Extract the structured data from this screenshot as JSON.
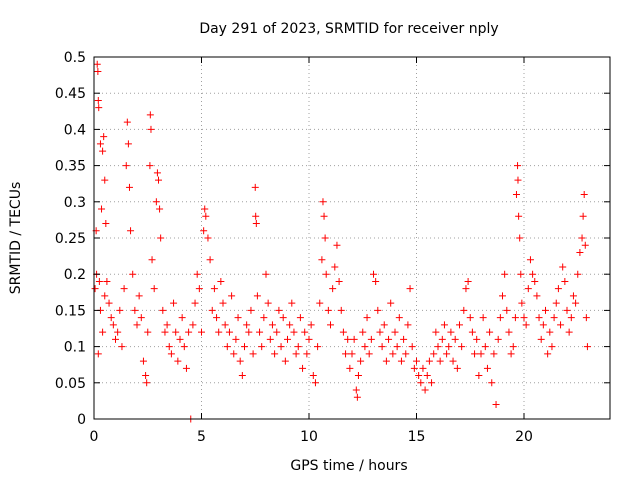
{
  "chart_data": {
    "type": "scatter",
    "title": "Day 291 of 2023, SRMTID for receiver nply",
    "xlabel": "GPS time / hours",
    "ylabel": "SRMTID / TECUs",
    "xlim": [
      0,
      24
    ],
    "ylim": [
      0,
      0.5
    ],
    "x_ticks": [
      0,
      5,
      10,
      15,
      20
    ],
    "y_ticks": [
      0,
      0.05,
      0.1,
      0.15,
      0.2,
      0.25,
      0.3,
      0.35,
      0.4,
      0.45,
      0.5
    ],
    "x_tick_labels": [
      "0",
      "5",
      "10",
      "15",
      "20"
    ],
    "y_tick_labels": [
      "0",
      "0.05",
      "0.1",
      "0.15",
      "0.2",
      "0.25",
      "0.3",
      "0.35",
      "0.4",
      "0.45",
      "0.5"
    ],
    "grid": true,
    "marker": "+",
    "color": "#ff0000",
    "series": [
      {
        "name": "nply",
        "points": [
          [
            0.05,
            0.18
          ],
          [
            0.1,
            0.26
          ],
          [
            0.12,
            0.2
          ],
          [
            0.15,
            0.49
          ],
          [
            0.18,
            0.48
          ],
          [
            0.2,
            0.44
          ],
          [
            0.22,
            0.43
          ],
          [
            0.25,
            0.19
          ],
          [
            0.3,
            0.38
          ],
          [
            0.35,
            0.29
          ],
          [
            0.4,
            0.37
          ],
          [
            0.45,
            0.39
          ],
          [
            0.5,
            0.33
          ],
          [
            0.55,
            0.27
          ],
          [
            0.3,
            0.15
          ],
          [
            0.4,
            0.12
          ],
          [
            0.5,
            0.17
          ],
          [
            0.6,
            0.19
          ],
          [
            0.7,
            0.16
          ],
          [
            0.2,
            0.09
          ],
          [
            0.8,
            0.14
          ],
          [
            0.9,
            0.13
          ],
          [
            1.0,
            0.11
          ],
          [
            1.1,
            0.12
          ],
          [
            1.2,
            0.15
          ],
          [
            1.3,
            0.1
          ],
          [
            1.4,
            0.18
          ],
          [
            1.5,
            0.35
          ],
          [
            1.55,
            0.41
          ],
          [
            1.6,
            0.38
          ],
          [
            1.65,
            0.32
          ],
          [
            1.7,
            0.26
          ],
          [
            1.8,
            0.2
          ],
          [
            1.9,
            0.15
          ],
          [
            2.0,
            0.13
          ],
          [
            2.1,
            0.17
          ],
          [
            2.2,
            0.14
          ],
          [
            2.3,
            0.08
          ],
          [
            2.4,
            0.06
          ],
          [
            2.45,
            0.05
          ],
          [
            2.5,
            0.12
          ],
          [
            2.6,
            0.35
          ],
          [
            2.62,
            0.42
          ],
          [
            2.65,
            0.4
          ],
          [
            2.7,
            0.22
          ],
          [
            2.8,
            0.18
          ],
          [
            2.9,
            0.3
          ],
          [
            2.95,
            0.34
          ],
          [
            3.0,
            0.33
          ],
          [
            3.05,
            0.29
          ],
          [
            3.1,
            0.25
          ],
          [
            3.2,
            0.15
          ],
          [
            3.3,
            0.12
          ],
          [
            3.4,
            0.13
          ],
          [
            3.5,
            0.1
          ],
          [
            3.6,
            0.09
          ],
          [
            3.7,
            0.16
          ],
          [
            3.8,
            0.12
          ],
          [
            3.9,
            0.08
          ],
          [
            4.0,
            0.11
          ],
          [
            4.1,
            0.14
          ],
          [
            4.2,
            0.1
          ],
          [
            4.3,
            0.07
          ],
          [
            4.4,
            0.12
          ],
          [
            4.5,
            0.0
          ],
          [
            4.6,
            0.13
          ],
          [
            4.7,
            0.16
          ],
          [
            4.8,
            0.2
          ],
          [
            4.9,
            0.18
          ],
          [
            5.0,
            0.12
          ],
          [
            5.1,
            0.26
          ],
          [
            5.15,
            0.29
          ],
          [
            5.2,
            0.28
          ],
          [
            5.3,
            0.25
          ],
          [
            5.4,
            0.22
          ],
          [
            5.5,
            0.15
          ],
          [
            5.6,
            0.18
          ],
          [
            5.7,
            0.14
          ],
          [
            5.8,
            0.12
          ],
          [
            5.9,
            0.19
          ],
          [
            6.0,
            0.16
          ],
          [
            6.1,
            0.13
          ],
          [
            6.2,
            0.1
          ],
          [
            6.3,
            0.12
          ],
          [
            6.4,
            0.17
          ],
          [
            6.5,
            0.09
          ],
          [
            6.6,
            0.11
          ],
          [
            6.7,
            0.14
          ],
          [
            6.8,
            0.08
          ],
          [
            6.9,
            0.06
          ],
          [
            7.0,
            0.1
          ],
          [
            7.1,
            0.13
          ],
          [
            7.2,
            0.12
          ],
          [
            7.3,
            0.15
          ],
          [
            7.4,
            0.09
          ],
          [
            7.5,
            0.32
          ],
          [
            7.52,
            0.28
          ],
          [
            7.55,
            0.27
          ],
          [
            7.6,
            0.17
          ],
          [
            7.7,
            0.12
          ],
          [
            7.8,
            0.1
          ],
          [
            7.9,
            0.14
          ],
          [
            8.0,
            0.2
          ],
          [
            8.1,
            0.16
          ],
          [
            8.2,
            0.11
          ],
          [
            8.3,
            0.13
          ],
          [
            8.4,
            0.09
          ],
          [
            8.5,
            0.12
          ],
          [
            8.6,
            0.15
          ],
          [
            8.7,
            0.1
          ],
          [
            8.8,
            0.14
          ],
          [
            8.9,
            0.08
          ],
          [
            9.0,
            0.11
          ],
          [
            9.1,
            0.13
          ],
          [
            9.2,
            0.16
          ],
          [
            9.3,
            0.12
          ],
          [
            9.4,
            0.09
          ],
          [
            9.5,
            0.1
          ],
          [
            9.6,
            0.14
          ],
          [
            9.7,
            0.07
          ],
          [
            9.8,
            0.12
          ],
          [
            9.9,
            0.09
          ],
          [
            10.0,
            0.11
          ],
          [
            10.1,
            0.13
          ],
          [
            10.2,
            0.06
          ],
          [
            10.3,
            0.05
          ],
          [
            10.4,
            0.1
          ],
          [
            10.5,
            0.16
          ],
          [
            10.6,
            0.22
          ],
          [
            10.65,
            0.3
          ],
          [
            10.7,
            0.28
          ],
          [
            10.75,
            0.25
          ],
          [
            10.8,
            0.2
          ],
          [
            10.9,
            0.15
          ],
          [
            11.0,
            0.13
          ],
          [
            11.1,
            0.18
          ],
          [
            11.2,
            0.21
          ],
          [
            11.3,
            0.24
          ],
          [
            11.4,
            0.19
          ],
          [
            11.5,
            0.15
          ],
          [
            11.6,
            0.12
          ],
          [
            11.7,
            0.09
          ],
          [
            11.8,
            0.11
          ],
          [
            11.9,
            0.07
          ],
          [
            12.0,
            0.09
          ],
          [
            12.1,
            0.11
          ],
          [
            12.2,
            0.04
          ],
          [
            12.25,
            0.03
          ],
          [
            12.3,
            0.06
          ],
          [
            12.4,
            0.08
          ],
          [
            12.5,
            0.12
          ],
          [
            12.6,
            0.1
          ],
          [
            12.7,
            0.14
          ],
          [
            12.8,
            0.09
          ],
          [
            12.9,
            0.11
          ],
          [
            13.0,
            0.2
          ],
          [
            13.1,
            0.19
          ],
          [
            13.2,
            0.15
          ],
          [
            13.3,
            0.12
          ],
          [
            13.4,
            0.1
          ],
          [
            13.5,
            0.13
          ],
          [
            13.6,
            0.08
          ],
          [
            13.7,
            0.11
          ],
          [
            13.8,
            0.16
          ],
          [
            13.9,
            0.09
          ],
          [
            14.0,
            0.12
          ],
          [
            14.1,
            0.1
          ],
          [
            14.2,
            0.14
          ],
          [
            14.3,
            0.08
          ],
          [
            14.4,
            0.11
          ],
          [
            14.5,
            0.09
          ],
          [
            14.6,
            0.13
          ],
          [
            14.7,
            0.18
          ],
          [
            14.8,
            0.1
          ],
          [
            14.9,
            0.07
          ],
          [
            15.0,
            0.08
          ],
          [
            15.1,
            0.06
          ],
          [
            15.2,
            0.05
          ],
          [
            15.3,
            0.07
          ],
          [
            15.4,
            0.04
          ],
          [
            15.5,
            0.06
          ],
          [
            15.6,
            0.08
          ],
          [
            15.7,
            0.05
          ],
          [
            15.8,
            0.09
          ],
          [
            15.9,
            0.12
          ],
          [
            16.0,
            0.1
          ],
          [
            16.1,
            0.08
          ],
          [
            16.2,
            0.11
          ],
          [
            16.3,
            0.13
          ],
          [
            16.4,
            0.09
          ],
          [
            16.5,
            0.1
          ],
          [
            16.6,
            0.12
          ],
          [
            16.7,
            0.08
          ],
          [
            16.8,
            0.11
          ],
          [
            16.9,
            0.07
          ],
          [
            17.0,
            0.13
          ],
          [
            17.1,
            0.1
          ],
          [
            17.2,
            0.15
          ],
          [
            17.3,
            0.18
          ],
          [
            17.4,
            0.19
          ],
          [
            17.5,
            0.14
          ],
          [
            17.6,
            0.12
          ],
          [
            17.7,
            0.09
          ],
          [
            17.8,
            0.11
          ],
          [
            17.9,
            0.06
          ],
          [
            18.0,
            0.09
          ],
          [
            18.1,
            0.14
          ],
          [
            18.2,
            0.1
          ],
          [
            18.3,
            0.07
          ],
          [
            18.4,
            0.12
          ],
          [
            18.5,
            0.05
          ],
          [
            18.6,
            0.09
          ],
          [
            18.7,
            0.02
          ],
          [
            18.8,
            0.11
          ],
          [
            18.9,
            0.14
          ],
          [
            19.0,
            0.17
          ],
          [
            19.1,
            0.2
          ],
          [
            19.2,
            0.15
          ],
          [
            19.3,
            0.12
          ],
          [
            19.4,
            0.09
          ],
          [
            19.5,
            0.1
          ],
          [
            19.6,
            0.14
          ],
          [
            19.65,
            0.31
          ],
          [
            19.7,
            0.35
          ],
          [
            19.72,
            0.33
          ],
          [
            19.75,
            0.28
          ],
          [
            19.8,
            0.25
          ],
          [
            19.85,
            0.2
          ],
          [
            19.9,
            0.16
          ],
          [
            20.0,
            0.14
          ],
          [
            20.1,
            0.13
          ],
          [
            20.2,
            0.18
          ],
          [
            20.3,
            0.22
          ],
          [
            20.4,
            0.2
          ],
          [
            20.5,
            0.19
          ],
          [
            20.6,
            0.17
          ],
          [
            20.7,
            0.14
          ],
          [
            20.8,
            0.11
          ],
          [
            20.9,
            0.13
          ],
          [
            21.0,
            0.15
          ],
          [
            21.1,
            0.09
          ],
          [
            21.2,
            0.12
          ],
          [
            21.3,
            0.1
          ],
          [
            21.4,
            0.14
          ],
          [
            21.5,
            0.16
          ],
          [
            21.6,
            0.18
          ],
          [
            21.7,
            0.13
          ],
          [
            21.8,
            0.21
          ],
          [
            21.9,
            0.19
          ],
          [
            22.0,
            0.15
          ],
          [
            22.1,
            0.12
          ],
          [
            22.2,
            0.14
          ],
          [
            22.3,
            0.17
          ],
          [
            22.4,
            0.16
          ],
          [
            22.5,
            0.2
          ],
          [
            22.6,
            0.23
          ],
          [
            22.7,
            0.25
          ],
          [
            22.75,
            0.28
          ],
          [
            22.8,
            0.31
          ],
          [
            22.85,
            0.24
          ],
          [
            22.9,
            0.14
          ],
          [
            22.95,
            0.1
          ]
        ]
      }
    ]
  }
}
